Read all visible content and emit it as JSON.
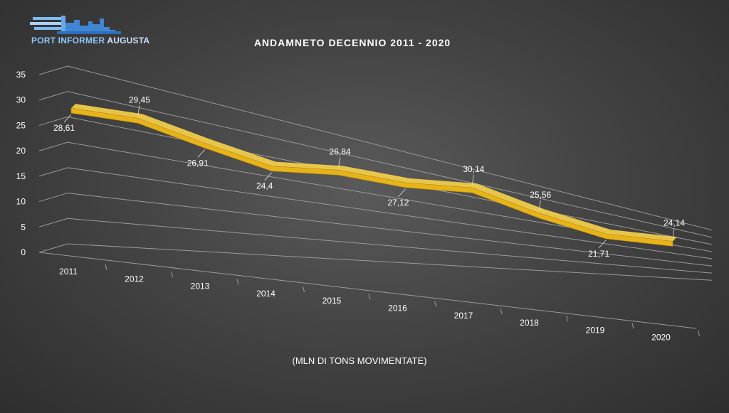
{
  "logo": {
    "text_main": "PORT INFORMER",
    "text_accent": "AUGUSTA"
  },
  "colors": {
    "line": "#e6b319",
    "line_top": "#f7d34a",
    "line_side": "#b7860f",
    "grid": "#9a9a9a",
    "text": "#ffffff",
    "background": "#444444"
  },
  "chart_data": {
    "type": "line",
    "style": "3d",
    "title": "ANDAMNETO DECENNIO 2011 - 2020",
    "xlabel": "(MLN DI TONS MOVIMENTATE)",
    "ylabel": "",
    "ylim": [
      0,
      35
    ],
    "yticks": [
      "0",
      "5",
      "10",
      "15",
      "20",
      "25",
      "30",
      "35"
    ],
    "categories": [
      "2011",
      "2012",
      "2013",
      "2014",
      "2015",
      "2016",
      "2017",
      "2018",
      "2019",
      "2020"
    ],
    "values": [
      28.61,
      29.45,
      26.91,
      24.4,
      26.84,
      27.12,
      30.14,
      25.56,
      21.71,
      24.14
    ],
    "data_labels": [
      "28,61",
      "29,45",
      "26,91",
      "24,4",
      "26,84",
      "27,12",
      "30,14",
      "25,56",
      "21,71",
      "24,14"
    ],
    "grid": true,
    "legend": "none"
  }
}
